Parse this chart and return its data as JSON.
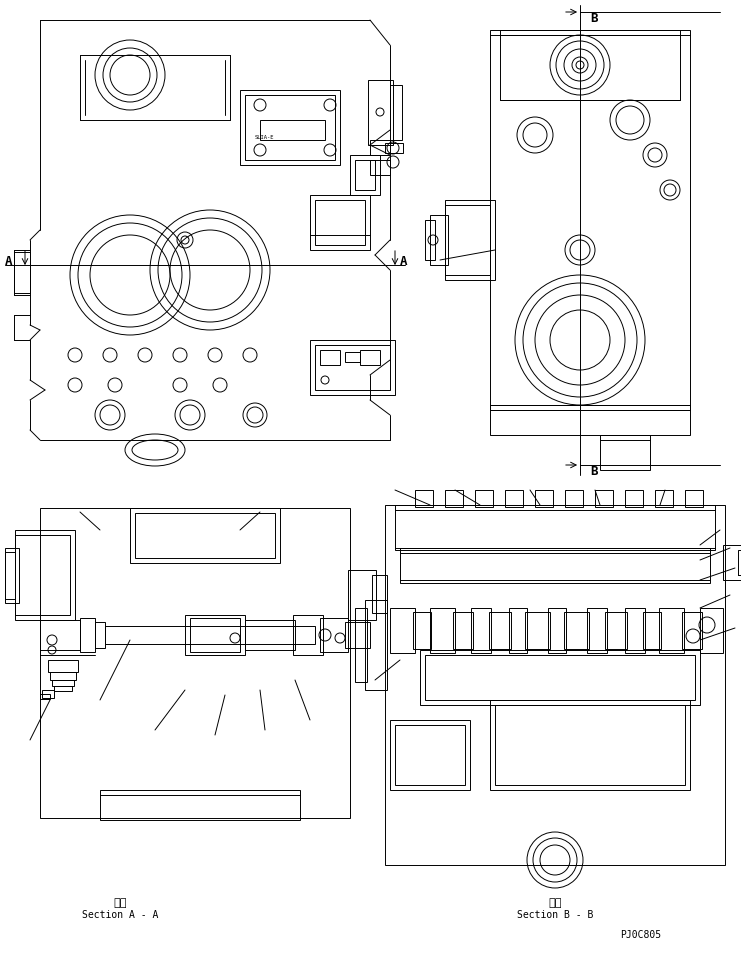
{
  "bg_color": "#ffffff",
  "lc": "#000000",
  "lw": 0.7,
  "fig_width": 7.41,
  "fig_height": 9.75,
  "dpi": 100,
  "label_A": "A",
  "label_B": "B",
  "section_aa_japanese": "断面",
  "section_aa_english": "Section A - A",
  "section_bb_japanese": "断面",
  "section_bb_english": "Section B - B",
  "part_number": "PJ0C805"
}
